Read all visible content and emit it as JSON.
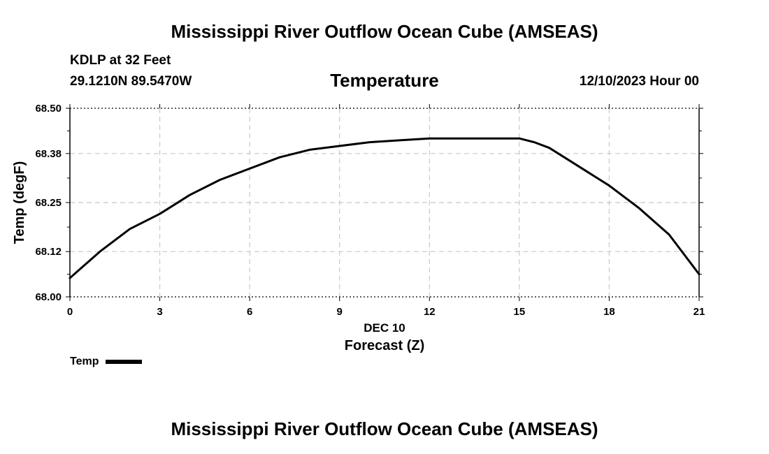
{
  "header": {
    "title": "Mississippi River Outflow Ocean Cube (AMSEAS)",
    "station": "KDLP at 32 Feet",
    "coords": "29.1210N  89.5470W",
    "variable": "Temperature",
    "datetime": "12/10/2023 Hour 00"
  },
  "footer": {
    "title": "Mississippi River Outflow Ocean Cube (AMSEAS)"
  },
  "legend": {
    "label": "Temp"
  },
  "chart_data": {
    "type": "line",
    "xlabel_date": "DEC 10",
    "xlabel": "Forecast (Z)",
    "ylabel": "Temp (degF)",
    "xlim": [
      0,
      21
    ],
    "ylim": [
      68.0,
      68.5
    ],
    "x_ticks": [
      0,
      3,
      6,
      9,
      12,
      15,
      18,
      21
    ],
    "y_ticks": [
      "68.00",
      "68.12",
      "68.25",
      "68.38",
      "68.50"
    ],
    "grid": true,
    "legend_position": "bottom-left",
    "series": [
      {
        "name": "Temp",
        "color": "#000000",
        "x": [
          0,
          1,
          2,
          3,
          4,
          5,
          6,
          7,
          8,
          9,
          10,
          11,
          12,
          13,
          14,
          15,
          15.5,
          16,
          17,
          18,
          19,
          20,
          21
        ],
        "values": [
          68.05,
          68.12,
          68.18,
          68.22,
          68.27,
          68.31,
          68.34,
          68.37,
          68.39,
          68.4,
          68.41,
          68.415,
          68.42,
          68.42,
          68.42,
          68.42,
          68.41,
          68.395,
          68.345,
          68.295,
          68.235,
          68.165,
          68.06
        ]
      }
    ]
  }
}
